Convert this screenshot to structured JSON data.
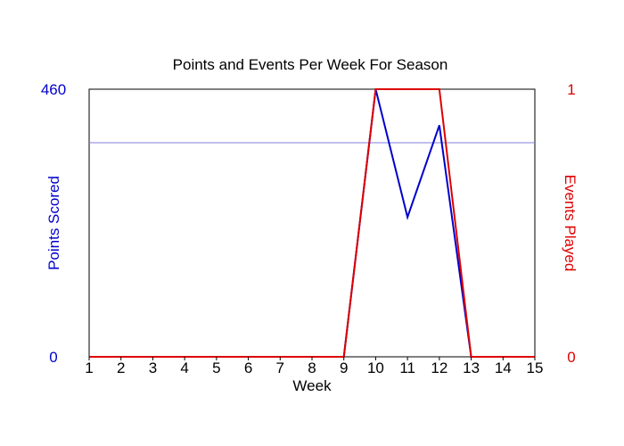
{
  "chart_data": {
    "type": "line",
    "title": "Points and Events Per Week For Season",
    "xlabel": "Week",
    "ylabel_left": "Points Scored",
    "ylabel_right": "Events Played",
    "x": [
      1,
      2,
      3,
      4,
      5,
      6,
      7,
      8,
      9,
      10,
      11,
      12,
      13,
      14,
      15
    ],
    "x_ticks": [
      "1",
      "2",
      "3",
      "4",
      "5",
      "6",
      "7",
      "8",
      "9",
      "10",
      "11",
      "12",
      "13",
      "14",
      "15"
    ],
    "xlim": [
      1,
      15
    ],
    "ylim_left": [
      0,
      460
    ],
    "ylim_right": [
      0,
      1
    ],
    "y_ticks_left": [
      "0",
      "460"
    ],
    "y_ticks_right": [
      "0",
      "1"
    ],
    "reference_line_left": 368,
    "series": [
      {
        "name": "Points Scored",
        "axis": "left",
        "color": "#0000cc",
        "values": [
          0,
          0,
          0,
          0,
          0,
          0,
          0,
          0,
          0,
          460,
          240,
          398,
          0,
          0,
          0
        ]
      },
      {
        "name": "Events Played",
        "axis": "right",
        "color": "#dd0000",
        "values": [
          0,
          0,
          0,
          0,
          0,
          0,
          0,
          0,
          0,
          1,
          1,
          1,
          0,
          0,
          0
        ]
      }
    ],
    "colors": {
      "left_axis": "#0000cc",
      "right_axis": "#dd0000",
      "reference_line": "#8080dd",
      "frame": "#000000"
    }
  }
}
